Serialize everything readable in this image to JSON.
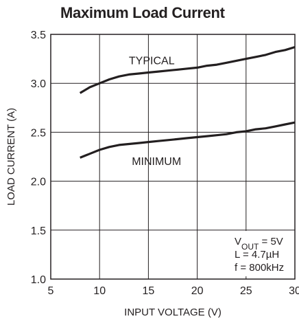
{
  "chart_data": {
    "type": "line",
    "title": "Maximum Load Current",
    "xlabel": "INPUT VOLTAGE (V)",
    "ylabel": "LOAD CURRENT (A)",
    "xlim": [
      5,
      30
    ],
    "ylim": [
      1.0,
      3.5
    ],
    "xticks": [
      5,
      10,
      15,
      20,
      25,
      30
    ],
    "yticks": [
      1.0,
      1.5,
      2.0,
      2.5,
      3.0,
      3.5
    ],
    "xtick_labels": [
      "5",
      "10",
      "15",
      "20",
      "25",
      "30"
    ],
    "ytick_labels": [
      "1.0",
      "1.5",
      "2.0",
      "2.5",
      "3.0",
      "3.5"
    ],
    "grid": true,
    "series": [
      {
        "name": "TYPICAL",
        "x": [
          8,
          9,
          10,
          11,
          12,
          13,
          14,
          15,
          16,
          17,
          18,
          19,
          20,
          21,
          22,
          23,
          24,
          25,
          26,
          27,
          28,
          29,
          30
        ],
        "y": [
          2.9,
          2.96,
          3.0,
          3.04,
          3.07,
          3.09,
          3.1,
          3.11,
          3.12,
          3.13,
          3.14,
          3.15,
          3.16,
          3.18,
          3.19,
          3.21,
          3.23,
          3.25,
          3.27,
          3.29,
          3.32,
          3.34,
          3.37
        ]
      },
      {
        "name": "MINIMUM",
        "x": [
          8,
          9,
          10,
          11,
          12,
          13,
          14,
          15,
          16,
          17,
          18,
          19,
          20,
          21,
          22,
          23,
          24,
          25,
          26,
          27,
          28,
          29,
          30
        ],
        "y": [
          2.24,
          2.28,
          2.32,
          2.35,
          2.37,
          2.38,
          2.39,
          2.4,
          2.41,
          2.42,
          2.43,
          2.44,
          2.45,
          2.46,
          2.47,
          2.48,
          2.5,
          2.51,
          2.53,
          2.54,
          2.56,
          2.58,
          2.6
        ]
      }
    ],
    "annotation_lines": [
      {
        "parts": [
          {
            "text": "V",
            "sub": false
          },
          {
            "text": "OUT",
            "sub": true
          },
          {
            "text": " = 5V",
            "sub": false
          }
        ]
      },
      {
        "parts": [
          {
            "text": "L = 4.7µH",
            "sub": false
          }
        ]
      },
      {
        "parts": [
          {
            "text": "f = 800kHz",
            "sub": false
          }
        ]
      }
    ]
  }
}
